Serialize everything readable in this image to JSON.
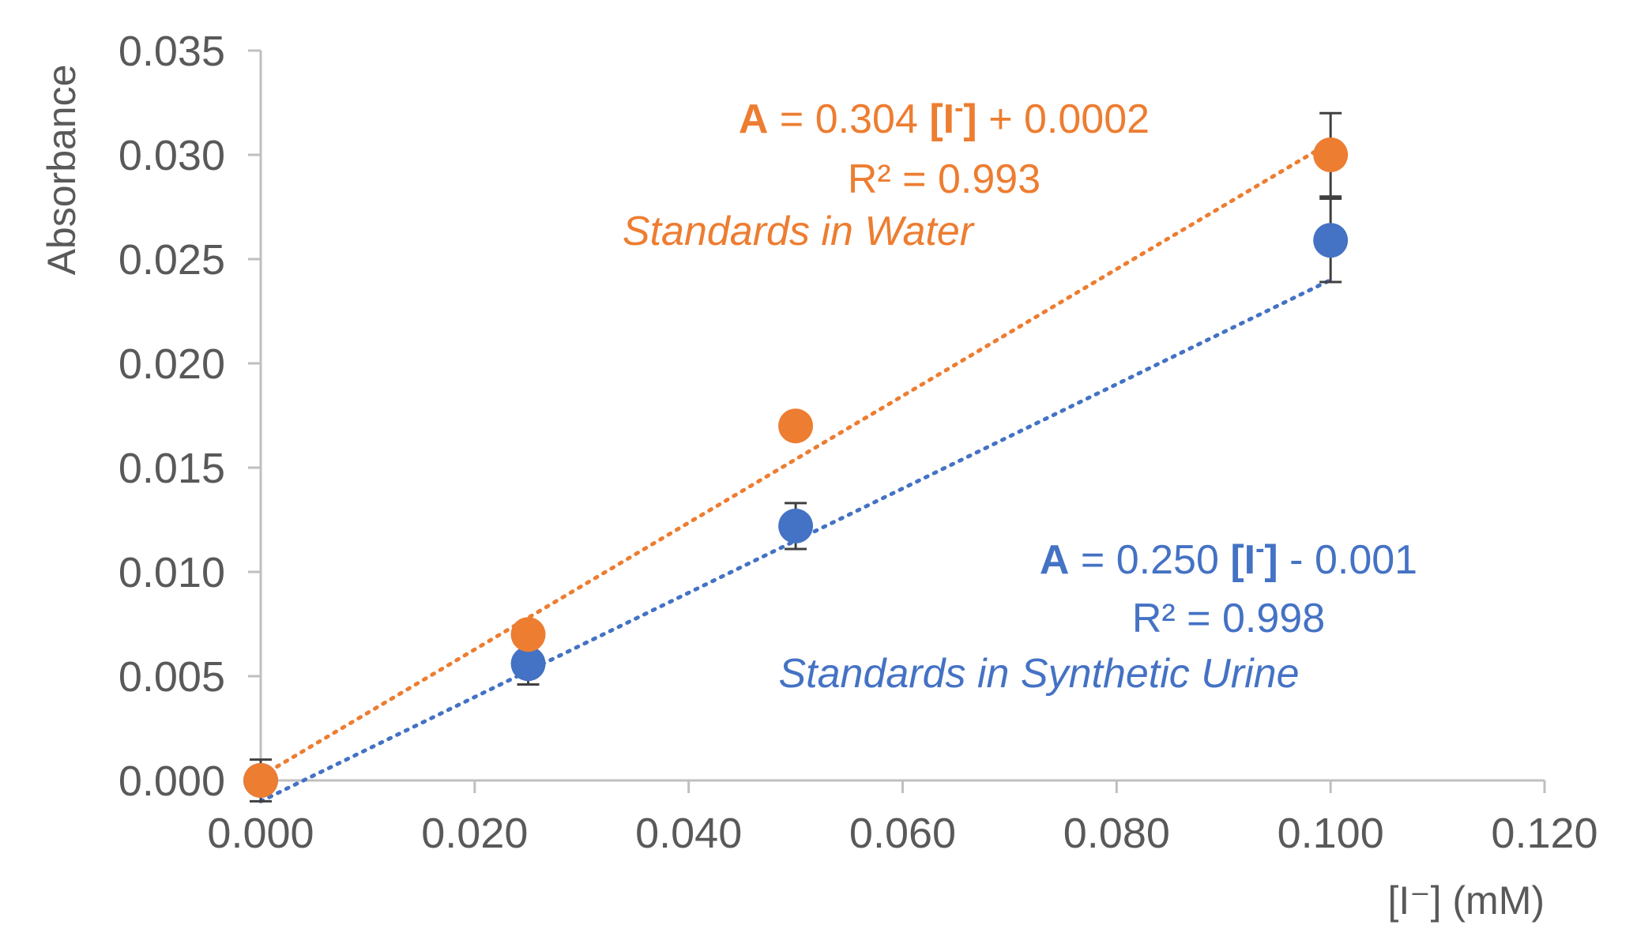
{
  "chart_data": {
    "type": "scatter",
    "xlabel": "[I⁻] (mM)",
    "ylabel": "Absorbance",
    "xlim": [
      0,
      0.12
    ],
    "ylim": [
      0,
      0.035
    ],
    "x_ticks": [
      "0.000",
      "0.020",
      "0.040",
      "0.060",
      "0.080",
      "0.100",
      "0.120"
    ],
    "y_ticks": [
      "0.000",
      "0.005",
      "0.010",
      "0.015",
      "0.020",
      "0.025",
      "0.030",
      "0.035"
    ],
    "x_tick_values": [
      0,
      0.02,
      0.04,
      0.06,
      0.08,
      0.1,
      0.12
    ],
    "y_tick_values": [
      0,
      0.005,
      0.01,
      0.015,
      0.02,
      0.025,
      0.03,
      0.035
    ],
    "grid": false,
    "legend": "none",
    "series": [
      {
        "name": "Standards in Synthetic Urine",
        "color": "#4472C4",
        "x": [
          0,
          0.025,
          0.05,
          0.1
        ],
        "y": [
          0.0,
          0.0056,
          0.0122,
          0.0259
        ],
        "error": [
          0.001,
          0.001,
          0.0011,
          0.002
        ],
        "trendline": {
          "slope": 0.25,
          "intercept": -0.001,
          "equation": "A = 0.250 [I-] - 0.001",
          "r2": "R² = 0.998",
          "style": "dotted"
        },
        "label_parts": {
          "eq_a": "A",
          "eq_mid": " = 0.250 ",
          "eq_ion_open": "[I",
          "eq_ion_sup": "-",
          "eq_ion_close": "]",
          "eq_tail": " - 0.001",
          "r2": "R² = 0.998",
          "caption": "Standards in Synthetic Urine"
        }
      },
      {
        "name": "Standards in Water",
        "color": "#ED7D31",
        "x": [
          0,
          0.025,
          0.05,
          0.1
        ],
        "y": [
          0.0,
          0.007,
          0.017,
          0.03
        ],
        "error": [
          0.0,
          0.0,
          0.0,
          0.002
        ],
        "trendline": {
          "slope": 0.304,
          "intercept": 0.0002,
          "equation": "A = 0.304 [I-] + 0.0002",
          "r2": "R² = 0.993",
          "style": "dotted"
        },
        "label_parts": {
          "eq_a": "A",
          "eq_mid": " = 0.304 ",
          "eq_ion_open": "[I",
          "eq_ion_sup": "-",
          "eq_ion_close": "]",
          "eq_tail": " + 0.0002",
          "r2": "R² = 0.993",
          "caption": "Standards in Water"
        }
      }
    ],
    "axis_color": "#BFBFBF",
    "text_color": "#595959",
    "error_bar_color": "#404040"
  }
}
